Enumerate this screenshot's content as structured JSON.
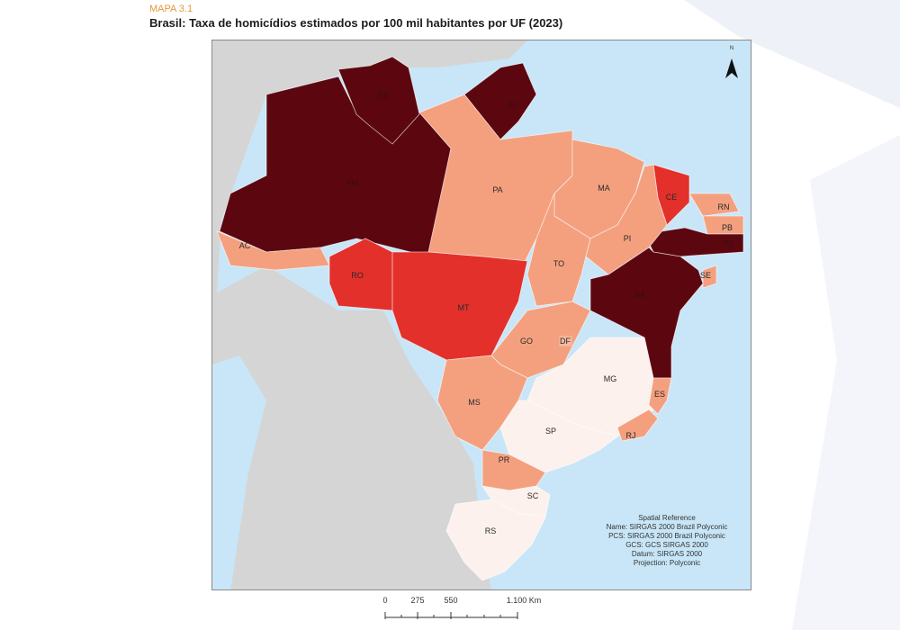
{
  "header": {
    "label": "MAPA 3.1",
    "title": "Brasil: Taxa de homicídios estimados por 100 mil habitantes por UF (2023)"
  },
  "colors": {
    "sea": "#c8e6f7",
    "land_other": "#d5d5d5",
    "very_high": "#5c0710",
    "high": "#e3302a",
    "medium": "#f4a07f",
    "low": "#fdf1ed"
  },
  "states": {
    "AC": "AC",
    "AM": "AM",
    "RR": "RR",
    "AP": "AP",
    "PA": "PA",
    "MA": "MA",
    "CE": "CE",
    "RN": "RN",
    "PB": "PB",
    "PE": "PE",
    "PI": "PI",
    "TO": "TO",
    "RO": "RO",
    "MT": "MT",
    "BA": "BA",
    "SE": "SE",
    "GO": "GO",
    "DF": "DF",
    "MG": "MG",
    "ES": "ES",
    "MS": "MS",
    "SP": "SP",
    "RJ": "RJ",
    "PR": "PR",
    "SC": "SC",
    "RS": "RS"
  },
  "north_arrow": {
    "letter": "N",
    "icon": "north-arrow-icon"
  },
  "legend": {
    "heading": "Spatial Reference",
    "name": "Name: SIRGAS 2000 Brazil Polyconic",
    "pcs": "PCS: SIRGAS 2000 Brazil Polyconic",
    "gcs": "GCS: GCS SIRGAS 2000",
    "datum": "Datum: SIRGAS 2000",
    "projection": "Projection: Polyconic"
  },
  "scale": {
    "t0": "0",
    "t1": "275",
    "t2": "550",
    "t3": "1.100 Km"
  }
}
